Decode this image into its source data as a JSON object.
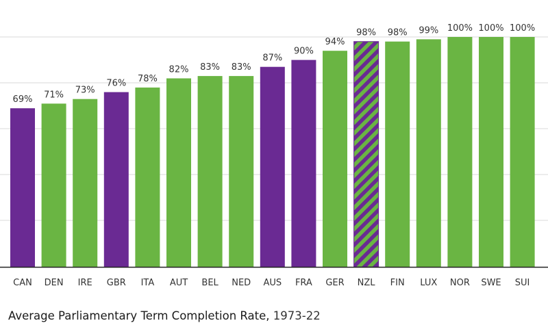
{
  "chart_data": {
    "type": "bar",
    "categories": [
      "CAN",
      "DEN",
      "IRE",
      "GBR",
      "ITA",
      "AUT",
      "BEL",
      "NED",
      "AUS",
      "FRA",
      "GER",
      "NZL",
      "FIN",
      "LUX",
      "NOR",
      "SWE",
      "SUI"
    ],
    "values": [
      69,
      71,
      73,
      76,
      78,
      82,
      83,
      83,
      87,
      90,
      94,
      98,
      98,
      99,
      100,
      100,
      100
    ],
    "value_labels": [
      "69%",
      "71%",
      "73%",
      "76%",
      "78%",
      "82%",
      "83%",
      "83%",
      "87%",
      "90%",
      "94%",
      "98%",
      "98%",
      "99%",
      "100%",
      "100%",
      "100%"
    ],
    "styles": [
      "purple",
      "green",
      "green",
      "purple",
      "green",
      "green",
      "green",
      "green",
      "purple",
      "purple",
      "green",
      "hatched",
      "green",
      "green",
      "green",
      "green",
      "green"
    ],
    "title": "Average Parliamentary Term Completion Rate,",
    "title_range": "1973-22",
    "xlabel": "",
    "ylabel": "",
    "ylim": [
      0,
      100
    ],
    "grid": true,
    "colors": {
      "green": "#6ab543",
      "purple": "#6a2a93",
      "grid": "#d9d9d9",
      "axis": "#222222",
      "text": "#333333"
    }
  }
}
